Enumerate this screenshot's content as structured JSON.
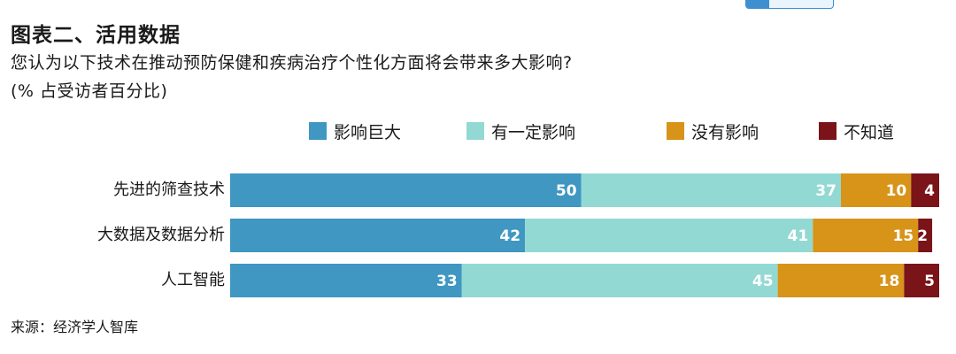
{
  "header": {
    "title": "图表二、活用数据",
    "subtitle": "您认为以下技术在推动预防保健和疾病治疗个性化方面将会带来多大影响?",
    "unit_note": "(% 占受访者百分比)"
  },
  "footer": {
    "source": "来源：经济学人智库"
  },
  "chart_data": {
    "type": "bar",
    "orientation": "horizontal",
    "stacked": true,
    "categories": [
      "先进的筛查技术",
      "大数据及数据分析",
      "人工智能"
    ],
    "series": [
      {
        "name": "影响巨大",
        "color": "#3f97c2",
        "values": [
          50,
          42,
          33
        ]
      },
      {
        "name": "有一定影响",
        "color": "#93d9d3",
        "values": [
          37,
          41,
          45
        ]
      },
      {
        "name": "没有影响",
        "color": "#d79419",
        "values": [
          10,
          15,
          18
        ]
      },
      {
        "name": "不知道",
        "color": "#7a1419",
        "values": [
          4,
          2,
          5
        ]
      }
    ],
    "xlim": [
      0,
      101
    ],
    "legend": "top",
    "grid": false
  }
}
